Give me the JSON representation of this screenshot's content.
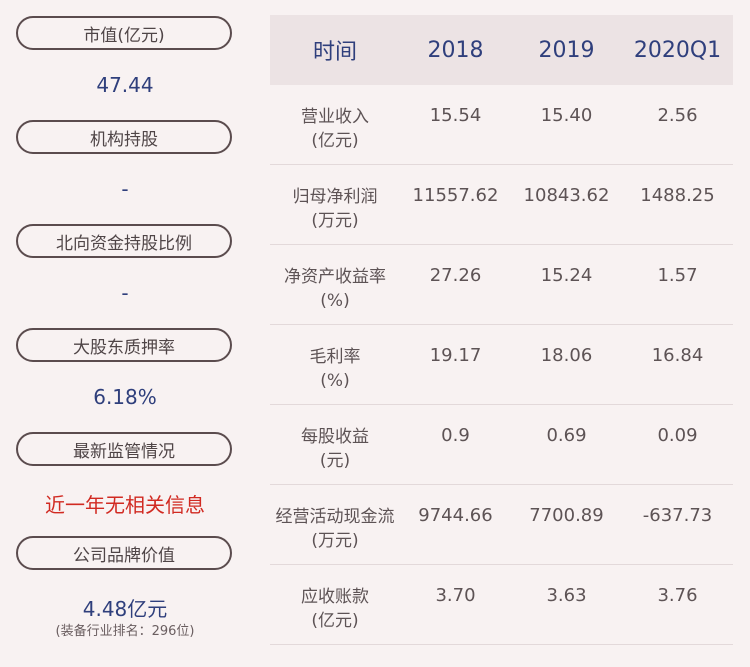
{
  "left": {
    "items": [
      {
        "label": "市值(亿元)",
        "value": "47.44"
      },
      {
        "label": "机构持股",
        "value": "-"
      },
      {
        "label": "北向资金持股比例",
        "value": "-"
      },
      {
        "label": "大股东质押率",
        "value": "6.18%"
      },
      {
        "label": "最新监管情况",
        "value": "近一年无相关信息"
      },
      {
        "label": "公司品牌价值",
        "value": "4.48亿元",
        "sub": "(装备行业排名：296位)"
      }
    ]
  },
  "table": {
    "headers": [
      "时间",
      "2018",
      "2019",
      "2020Q1"
    ],
    "rows": [
      {
        "label": [
          "营业收入",
          "(亿元)"
        ],
        "values": [
          "15.54",
          "15.40",
          "2.56"
        ]
      },
      {
        "label": [
          "归母净利润",
          "(万元)"
        ],
        "values": [
          "11557.62",
          "10843.62",
          "1488.25"
        ]
      },
      {
        "label": [
          "净资产收益率",
          "(%)"
        ],
        "values": [
          "27.26",
          "15.24",
          "1.57"
        ]
      },
      {
        "label": [
          "毛利率",
          "(%)"
        ],
        "values": [
          "19.17",
          "18.06",
          "16.84"
        ]
      },
      {
        "label": [
          "每股收益",
          "(元)"
        ],
        "values": [
          "0.9",
          "0.69",
          "0.09"
        ]
      },
      {
        "label": [
          "经营活动现金流",
          "(万元)"
        ],
        "values": [
          "9744.66",
          "7700.89",
          "-637.73"
        ]
      },
      {
        "label": [
          "应收账款",
          "(亿元)"
        ],
        "values": [
          "3.70",
          "3.63",
          "3.76"
        ]
      }
    ]
  },
  "colors": {
    "accent": "#2f3f7c",
    "alert": "#d12a22",
    "border": "#5b4c4e",
    "header_bg": "#ece3e4"
  }
}
